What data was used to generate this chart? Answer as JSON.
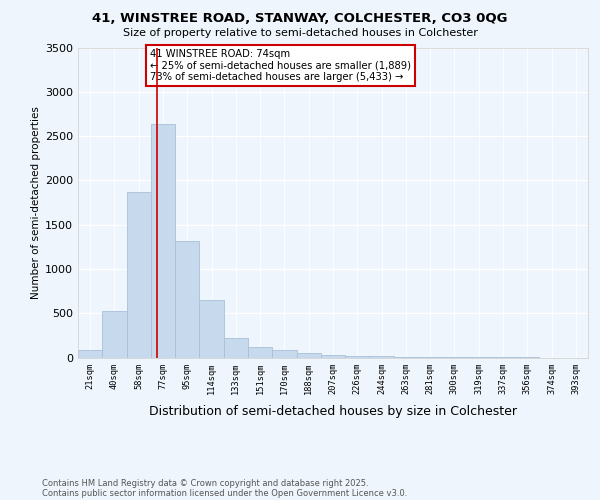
{
  "title": "41, WINSTREE ROAD, STANWAY, COLCHESTER, CO3 0QG",
  "subtitle": "Size of property relative to semi-detached houses in Colchester",
  "xlabel": "Distribution of semi-detached houses by size in Colchester",
  "ylabel": "Number of semi-detached properties",
  "footnote1": "Contains HM Land Registry data © Crown copyright and database right 2025.",
  "footnote2": "Contains public sector information licensed under the Open Government Licence v3.0.",
  "annotation_title": "41 WINSTREE ROAD: 74sqm",
  "annotation_line1": "← 25% of semi-detached houses are smaller (1,889)",
  "annotation_line2": "73% of semi-detached houses are larger (5,433) →",
  "property_size_bin": 2,
  "bin_labels": [
    "21sqm",
    "40sqm",
    "58sqm",
    "77sqm",
    "95sqm",
    "114sqm",
    "133sqm",
    "151sqm",
    "170sqm",
    "188sqm",
    "207sqm",
    "226sqm",
    "244sqm",
    "263sqm",
    "281sqm",
    "300sqm",
    "319sqm",
    "337sqm",
    "356sqm",
    "374sqm",
    "393sqm"
  ],
  "bar_values": [
    80,
    530,
    1870,
    2640,
    1310,
    650,
    220,
    115,
    80,
    55,
    30,
    20,
    15,
    8,
    5,
    3,
    2,
    1,
    1,
    0,
    0
  ],
  "bar_color": "#c6d9ed",
  "bar_edge_color": "#a8c0d8",
  "line_color": "#cc0000",
  "box_edge_color": "#cc0000",
  "box_face_color": "white",
  "background_color": "#eef5fc",
  "ylim": [
    0,
    3500
  ],
  "yticks": [
    0,
    500,
    1000,
    1500,
    2000,
    2500,
    3000,
    3500
  ],
  "red_line_x": 2.75
}
